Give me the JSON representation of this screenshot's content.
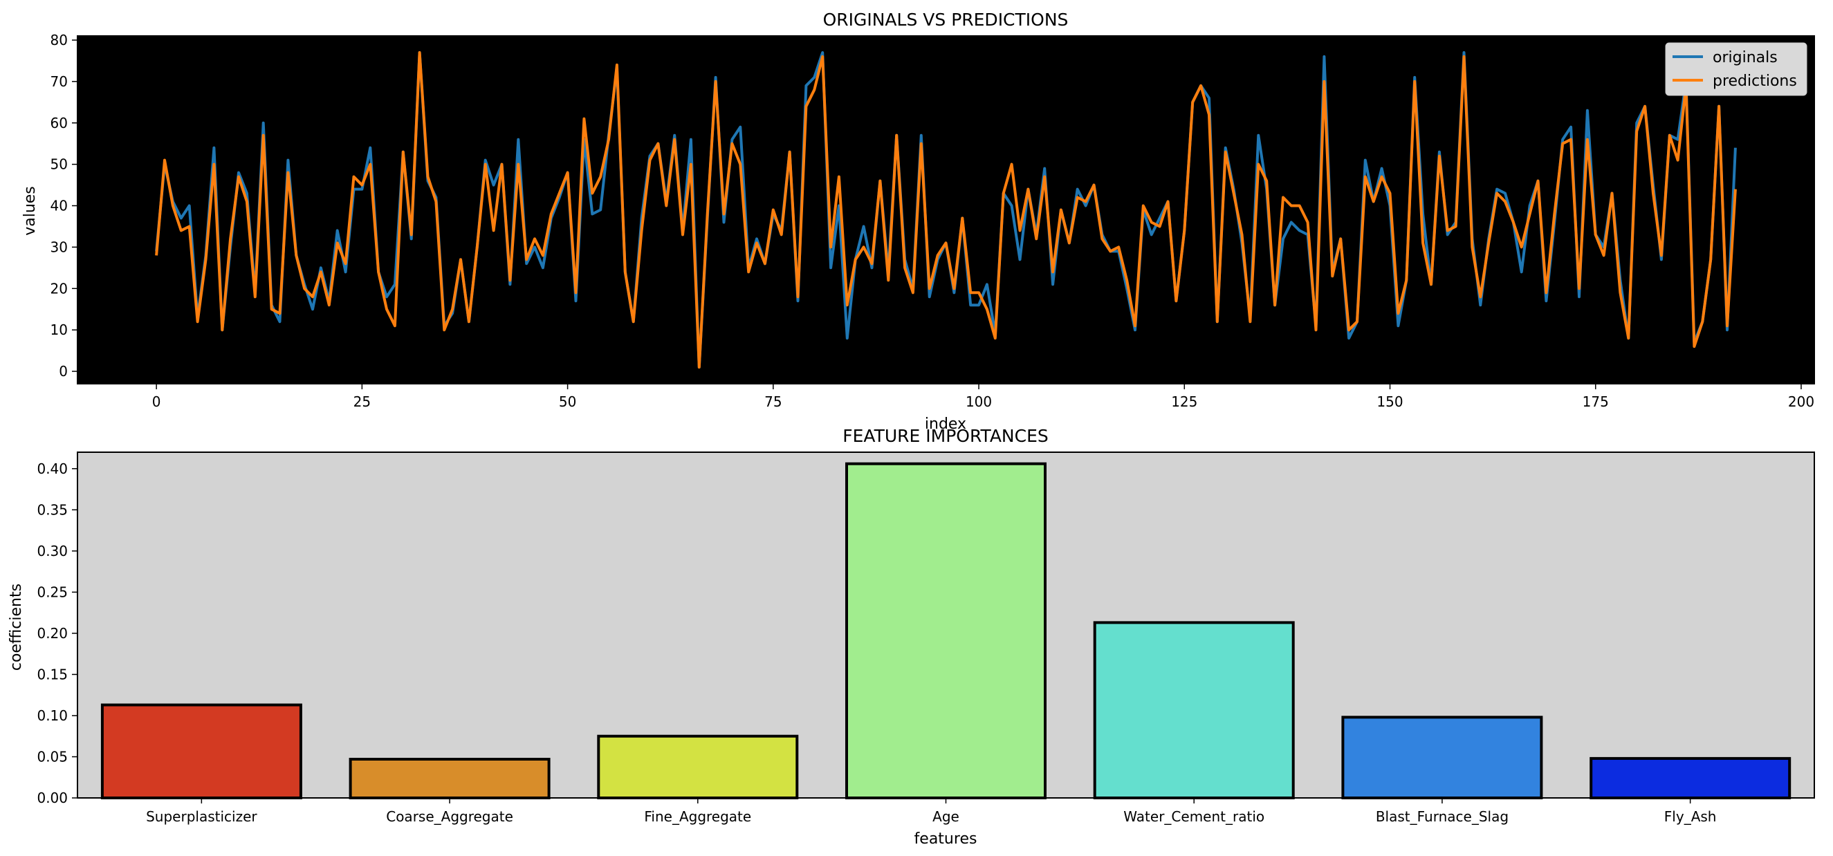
{
  "chart_data": [
    {
      "type": "line",
      "title": "ORIGINALS VS PREDICTIONS",
      "xlabel": "index",
      "ylabel": "values",
      "xlim": [
        -9.6,
        201.6
      ],
      "ylim": [
        -3,
        81
      ],
      "xticks": [
        0,
        25,
        50,
        75,
        100,
        125,
        150,
        175,
        200
      ],
      "yticks": [
        0,
        10,
        20,
        30,
        40,
        50,
        60,
        70,
        80
      ],
      "background": "#000000",
      "grid": false,
      "legend_position": "top-right",
      "series": [
        {
          "name": "originals",
          "color": "#1f77b4",
          "values": [
            29,
            50,
            41,
            37,
            40,
            13,
            28,
            54,
            10,
            30,
            48,
            43,
            19,
            60,
            16,
            12,
            51,
            28,
            21,
            15,
            25,
            17,
            34,
            24,
            44,
            44,
            54,
            24,
            18,
            21,
            53,
            32,
            77,
            46,
            42,
            11,
            14,
            27,
            12,
            30,
            51,
            45,
            50,
            21,
            56,
            26,
            30,
            25,
            37,
            42,
            48,
            17,
            56,
            38,
            39,
            57,
            73,
            24,
            12,
            37,
            52,
            55,
            41,
            57,
            34,
            56,
            1,
            37,
            71,
            36,
            56,
            59,
            25,
            32,
            26,
            38,
            34,
            53,
            17,
            69,
            71,
            77,
            25,
            40,
            8,
            27,
            35,
            25,
            46,
            24,
            57,
            27,
            20,
            57,
            18,
            27,
            31,
            19,
            37,
            16,
            16,
            21,
            9,
            43,
            40,
            27,
            44,
            33,
            49,
            21,
            39,
            31,
            44,
            40,
            45,
            33,
            29,
            29,
            20,
            10,
            39,
            33,
            37,
            41,
            17,
            34,
            65,
            69,
            66,
            12,
            54,
            44,
            31,
            13,
            57,
            44,
            16,
            32,
            36,
            34,
            33,
            11,
            76,
            24,
            32,
            8,
            12,
            51,
            41,
            49,
            40,
            11,
            22,
            71,
            38,
            21,
            53,
            33,
            36,
            77,
            32,
            16,
            32,
            44,
            43,
            36,
            24,
            40,
            46,
            17,
            36,
            56,
            59,
            18,
            63,
            33,
            30,
            43,
            22,
            8,
            60,
            64,
            45,
            27,
            57,
            56,
            70,
            7,
            12,
            27,
            64,
            10,
            54
          ]
        },
        {
          "name": "predictions",
          "color": "#ff7f0e",
          "values": [
            28,
            51,
            40,
            34,
            35,
            12,
            27,
            50,
            10,
            32,
            47,
            41,
            18,
            57,
            15,
            14,
            48,
            28,
            20,
            18,
            24,
            16,
            31,
            26,
            47,
            45,
            50,
            24,
            15,
            11,
            53,
            33,
            77,
            47,
            41,
            10,
            15,
            27,
            12,
            30,
            50,
            34,
            50,
            22,
            50,
            27,
            32,
            28,
            38,
            43,
            48,
            19,
            61,
            43,
            47,
            56,
            74,
            24,
            12,
            34,
            51,
            55,
            40,
            56,
            33,
            50,
            1,
            38,
            70,
            38,
            55,
            50,
            24,
            31,
            26,
            39,
            33,
            53,
            18,
            64,
            68,
            76,
            30,
            47,
            16,
            27,
            30,
            26,
            46,
            22,
            57,
            25,
            19,
            55,
            20,
            28,
            31,
            20,
            37,
            19,
            19,
            15,
            8,
            43,
            50,
            34,
            44,
            32,
            47,
            24,
            39,
            31,
            42,
            41,
            45,
            32,
            29,
            30,
            22,
            11,
            40,
            36,
            35,
            41,
            17,
            34,
            65,
            69,
            62,
            12,
            53,
            43,
            33,
            12,
            50,
            46,
            16,
            42,
            40,
            40,
            36,
            10,
            70,
            23,
            32,
            10,
            12,
            47,
            41,
            47,
            43,
            14,
            22,
            70,
            31,
            21,
            52,
            34,
            35,
            76,
            30,
            18,
            31,
            43,
            41,
            36,
            30,
            38,
            46,
            19,
            38,
            55,
            56,
            20,
            56,
            33,
            28,
            43,
            19,
            8,
            58,
            64,
            43,
            28,
            57,
            51,
            69,
            6,
            12,
            27,
            64,
            11,
            44
          ]
        }
      ]
    },
    {
      "type": "bar",
      "title": "FEATURE IMPORTANCES",
      "xlabel": "features",
      "ylabel": "coefficients",
      "ylim": [
        0,
        0.42
      ],
      "yticks": [
        0.0,
        0.05,
        0.1,
        0.15,
        0.2,
        0.25,
        0.3,
        0.35,
        0.4
      ],
      "ytick_labels": [
        "0.00",
        "0.05",
        "0.10",
        "0.15",
        "0.20",
        "0.25",
        "0.30",
        "0.35",
        "0.40"
      ],
      "background": "#d3d3d3",
      "grid": false,
      "categories": [
        "Superplasticizer",
        "Coarse_Aggregate",
        "Fine_Aggregate",
        "Age",
        "Water_Cement_ratio",
        "Blast_Furnace_Slag",
        "Fly_Ash"
      ],
      "values": [
        0.113,
        0.047,
        0.075,
        0.406,
        0.213,
        0.098,
        0.048
      ],
      "colors": [
        "#d33a22",
        "#d88d2a",
        "#d3e242",
        "#a1ed8e",
        "#64dfce",
        "#3283df",
        "#0c2ce0"
      ]
    }
  ]
}
